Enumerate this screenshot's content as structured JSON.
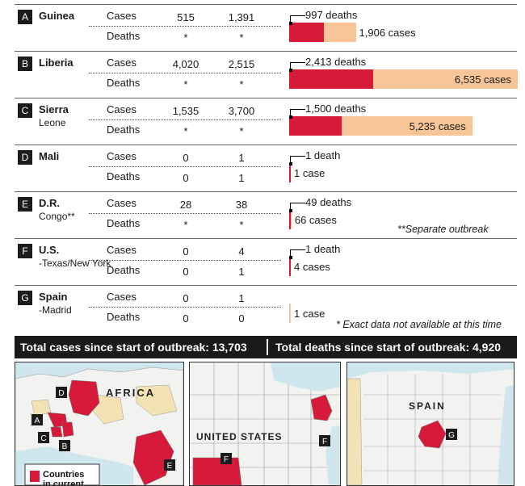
{
  "rows": [
    {
      "letter": "A",
      "name": "Guinea",
      "sub": "",
      "cases_label": "Cases",
      "deaths_label": "Deaths",
      "cases_a": "515",
      "cases_b": "1,391",
      "deaths_a": "*",
      "deaths_b": "*",
      "deaths_text": "997 deaths",
      "cases_text": "1,906 cases",
      "deaths_value": 997,
      "cases_value": 1906
    },
    {
      "letter": "B",
      "name": "Liberia",
      "sub": "",
      "cases_label": "Cases",
      "deaths_label": "Deaths",
      "cases_a": "4,020",
      "cases_b": "2,515",
      "deaths_a": "*",
      "deaths_b": "*",
      "deaths_text": "2,413 deaths",
      "cases_text": "6,535 cases",
      "deaths_value": 2413,
      "cases_value": 6535
    },
    {
      "letter": "C",
      "name": "Sierra",
      "sub": "Leone",
      "cases_label": "Cases",
      "deaths_label": "Deaths",
      "cases_a": "1,535",
      "cases_b": "3,700",
      "deaths_a": "*",
      "deaths_b": "*",
      "deaths_text": "1,500 deaths",
      "cases_text": "5,235 cases",
      "deaths_value": 1500,
      "cases_value": 5235
    },
    {
      "letter": "D",
      "name": "Mali",
      "sub": "",
      "cases_label": "Cases",
      "deaths_label": "Deaths",
      "cases_a": "0",
      "cases_b": "1",
      "deaths_a": "0",
      "deaths_b": "1",
      "deaths_text": "1 death",
      "cases_text": "1 case",
      "deaths_value": 1,
      "cases_value": 1
    },
    {
      "letter": "E",
      "name": "D.R.",
      "sub": "Congo**",
      "cases_label": "Cases",
      "deaths_label": "Deaths",
      "cases_a": "28",
      "cases_b": "38",
      "deaths_a": "*",
      "deaths_b": "*",
      "deaths_text": "49 deaths",
      "cases_text": "66 cases",
      "deaths_value": 49,
      "cases_value": 66
    },
    {
      "letter": "F",
      "name": "U.S.",
      "sub": "-Texas/New York",
      "cases_label": "Cases",
      "deaths_label": "Deaths",
      "cases_a": "0",
      "cases_b": "4",
      "deaths_a": "0",
      "deaths_b": "1",
      "deaths_text": "1 death",
      "cases_text": "4 cases",
      "deaths_value": 1,
      "cases_value": 4
    },
    {
      "letter": "G",
      "name": "Spain",
      "sub": "-Madrid",
      "cases_label": "Cases",
      "deaths_label": "Deaths",
      "cases_a": "0",
      "cases_b": "1",
      "deaths_a": "0",
      "deaths_b": "0",
      "deaths_text": "",
      "cases_text": "1 case",
      "deaths_value": 0,
      "cases_value": 1
    }
  ],
  "notes": {
    "separate": "**Separate outbreak",
    "exact": "* Exact data not available at this time"
  },
  "totals": {
    "cases": "Total cases since start of outbreak: 13,703",
    "deaths": "Total deaths since start of outbreak: 4,920"
  },
  "maps": {
    "africa_label": "AFRICA",
    "us_label": "UNITED STATES",
    "spain_label": "SPAIN",
    "legend": "Countries in current",
    "markers": [
      "A",
      "B",
      "C",
      "D",
      "E",
      "F",
      "G"
    ]
  },
  "colors": {
    "deaths": "#d7193a",
    "cases": "#f7c598",
    "outbreak": "#d7193a",
    "land": "#f2f2f0",
    "sea": "#cfe6ef"
  },
  "chart_data": {
    "type": "bar",
    "stacked": true,
    "categories": [
      "Guinea",
      "Liberia",
      "Sierra Leone",
      "Mali",
      "D.R. Congo",
      "U.S.",
      "Spain"
    ],
    "series": [
      {
        "values": [
          997,
          2413,
          1500,
          1,
          49,
          1,
          0
        ]
      },
      {
        "values": [
          1906,
          6535,
          5235,
          1,
          66,
          4,
          1
        ]
      }
    ]
  }
}
